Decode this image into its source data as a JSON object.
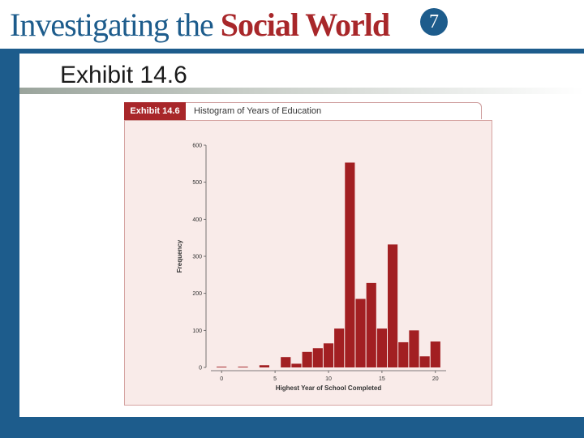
{
  "header": {
    "title_part1": "Investigating the ",
    "title_part2": "Social World",
    "edition": "7"
  },
  "slide": {
    "heading": "Exhibit 14.6"
  },
  "exhibit": {
    "tab_label": "Exhibit 14.6",
    "caption": "Histogram of Years of Education"
  },
  "colors": {
    "brand_blue": "#1d5c8c",
    "brand_red": "#a8272a",
    "bar_fill": "#a21f22",
    "panel_background": "#f9ebe9"
  },
  "chart_data": {
    "type": "bar",
    "xlabel": "Highest Year of School Completed",
    "ylabel": "Frequency",
    "xlim": [
      -1,
      21
    ],
    "ylim": [
      0,
      600
    ],
    "xticks": [
      0,
      5,
      10,
      15,
      20
    ],
    "yticks": [
      0,
      100,
      200,
      300,
      400,
      500,
      600
    ],
    "grid": false,
    "x": [
      0,
      1,
      2,
      3,
      4,
      5,
      6,
      7,
      8,
      9,
      10,
      11,
      12,
      13,
      14,
      15,
      16,
      17,
      18,
      19,
      20
    ],
    "values": [
      2,
      0,
      2,
      0,
      6,
      0,
      28,
      10,
      42,
      52,
      65,
      105,
      553,
      185,
      228,
      105,
      332,
      68,
      100,
      30,
      70
    ]
  }
}
